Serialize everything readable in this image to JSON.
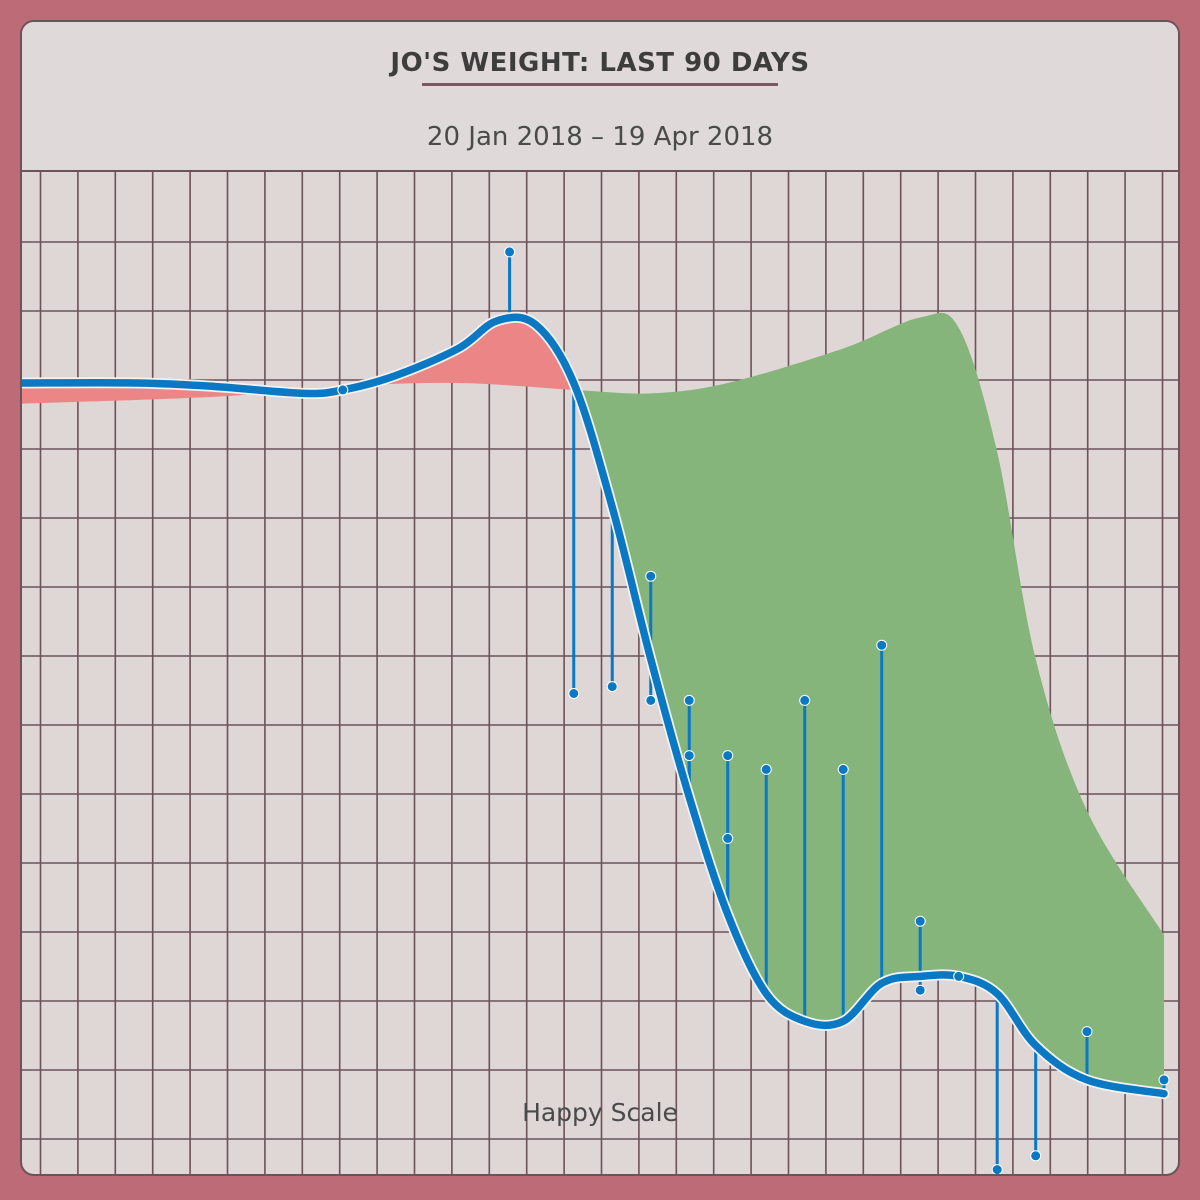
{
  "header": {
    "title": "JO'S WEIGHT: LAST 90 DAYS",
    "subtitle": "20 Jan 2018 – 19 Apr 2018"
  },
  "footer": {
    "brand": "Happy Scale"
  },
  "colors": {
    "background": "#bd6b77",
    "card": "#dfd6d6",
    "grid": "#6b5358",
    "trend": "#0a78c2",
    "above_goal_fill": "#ec8585",
    "below_goal_fill": "#86b57c"
  },
  "chart_data": {
    "type": "line",
    "title": "JO'S WEIGHT: LAST 90 DAYS",
    "subtitle": "20 Jan 2018 – 19 Apr 2018",
    "x_range": [
      "2018-01-20",
      "2018-04-19"
    ],
    "y_axis_labels": "none",
    "grid": true,
    "series": [
      {
        "role": "trend",
        "points": [
          [
            "2018-01-20",
            11.0
          ],
          [
            "2018-01-29",
            11.0
          ],
          [
            "2018-02-04",
            10.95
          ],
          [
            "2018-02-11",
            10.85
          ],
          [
            "2018-02-14",
            10.9
          ],
          [
            "2018-02-18",
            11.1
          ],
          [
            "2018-02-23",
            11.5
          ],
          [
            "2018-02-26",
            11.9
          ],
          [
            "2018-03-01",
            11.85
          ],
          [
            "2018-03-04",
            11.0
          ],
          [
            "2018-03-07",
            9.2
          ],
          [
            "2018-03-10",
            7.0
          ],
          [
            "2018-03-13",
            5.0
          ],
          [
            "2018-03-16",
            3.3
          ],
          [
            "2018-03-19",
            2.15
          ],
          [
            "2018-03-22",
            1.75
          ],
          [
            "2018-03-25",
            1.75
          ],
          [
            "2018-03-28",
            2.3
          ],
          [
            "2018-03-31",
            2.4
          ],
          [
            "2018-04-03",
            2.4
          ],
          [
            "2018-04-06",
            2.15
          ],
          [
            "2018-04-09",
            1.4
          ],
          [
            "2018-04-13",
            0.9
          ],
          [
            "2018-04-19",
            0.7
          ]
        ]
      },
      {
        "role": "target",
        "points": [
          [
            "2018-01-20",
            10.7
          ],
          [
            "2018-02-04",
            10.8
          ],
          [
            "2018-02-14",
            10.95
          ],
          [
            "2018-02-23",
            11.0
          ],
          [
            "2018-03-04",
            10.9
          ],
          [
            "2018-03-10",
            10.85
          ],
          [
            "2018-03-16",
            11.0
          ],
          [
            "2018-03-25",
            11.5
          ],
          [
            "2018-03-31",
            11.95
          ],
          [
            "2018-04-03",
            11.8
          ],
          [
            "2018-04-06",
            10.0
          ],
          [
            "2018-04-09",
            7.0
          ],
          [
            "2018-04-13",
            4.8
          ],
          [
            "2018-04-19",
            3.0
          ]
        ]
      },
      {
        "role": "weigh-ins",
        "points": [
          [
            "2018-02-14",
            10.9
          ],
          [
            "2018-02-27",
            12.9
          ],
          [
            "2018-03-04",
            6.5
          ],
          [
            "2018-03-07",
            6.6
          ],
          [
            "2018-03-10",
            8.2
          ],
          [
            "2018-03-10",
            6.4
          ],
          [
            "2018-03-13",
            6.4
          ],
          [
            "2018-03-13",
            5.6
          ],
          [
            "2018-03-16",
            5.6
          ],
          [
            "2018-03-16",
            4.4
          ],
          [
            "2018-03-19",
            5.4
          ],
          [
            "2018-03-22",
            6.4
          ],
          [
            "2018-03-25",
            5.4
          ],
          [
            "2018-03-28",
            7.2
          ],
          [
            "2018-03-31",
            3.2
          ],
          [
            "2018-03-31",
            2.2
          ],
          [
            "2018-04-03",
            2.4
          ],
          [
            "2018-04-06",
            -0.4
          ],
          [
            "2018-04-09",
            -0.2
          ],
          [
            "2018-04-13",
            1.6
          ],
          [
            "2018-04-19",
            0.9
          ]
        ]
      }
    ]
  }
}
